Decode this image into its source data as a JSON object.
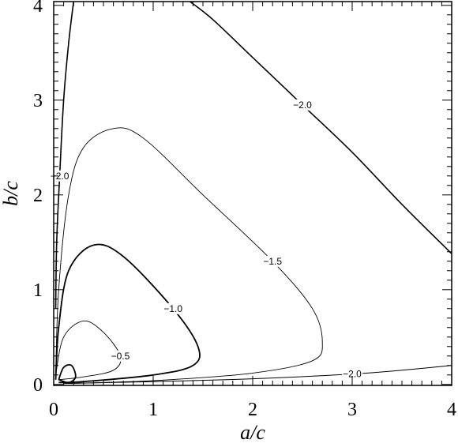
{
  "chart_data": {
    "type": "contour",
    "xlabel": "a/c",
    "ylabel": "b/c",
    "xlim": [
      0,
      4
    ],
    "ylim": [
      -0.01,
      4.04
    ],
    "xticks": [
      0,
      1,
      2,
      3,
      4
    ],
    "yticks": [
      0,
      1,
      2,
      3,
      4
    ],
    "series": [
      {
        "name": "−2.0",
        "width": 1.6,
        "x": [
          1.37,
          1.6,
          2.0,
          2.5,
          3.0,
          3.5,
          4.0
        ],
        "y": [
          4.04,
          3.85,
          3.45,
          2.95,
          2.45,
          1.9,
          1.38
        ]
      },
      {
        "name": "−2.0",
        "width": 1.6,
        "x": [
          0.2,
          0.15,
          0.1,
          0.06,
          0.03,
          0.02
        ],
        "y": [
          4.04,
          3.6,
          3.0,
          2.2,
          1.5,
          0.8
        ]
      },
      {
        "name": "−2.0",
        "width": 1.0,
        "x": [
          0.1,
          1.0,
          2.0,
          3.0,
          3.5,
          4.0
        ],
        "y": [
          0.01,
          0.03,
          0.06,
          0.11,
          0.15,
          0.2
        ]
      },
      {
        "name": "−1.5",
        "width": 0.9,
        "x": [
          0.02,
          0.05,
          0.15,
          0.3,
          0.6,
          0.9,
          1.5,
          2.2,
          2.6,
          2.7,
          2.6,
          2.0,
          1.0,
          0.1
        ],
        "y": [
          0.1,
          1.0,
          2.0,
          2.5,
          2.7,
          2.6,
          2.0,
          1.3,
          0.8,
          0.45,
          0.25,
          0.12,
          0.04,
          0.01
        ]
      },
      {
        "name": "−1.0",
        "width": 1.8,
        "x": [
          0.02,
          0.05,
          0.15,
          0.4,
          0.7,
          1.2,
          1.45,
          1.4,
          1.0,
          0.3,
          0.05
        ],
        "y": [
          0.05,
          0.6,
          1.2,
          1.47,
          1.35,
          0.8,
          0.4,
          0.2,
          0.1,
          0.03,
          0.02
        ]
      },
      {
        "name": "−0.5",
        "width": 0.9,
        "x": [
          0.02,
          0.1,
          0.3,
          0.5,
          0.67,
          0.6,
          0.3,
          0.05
        ],
        "y": [
          0.1,
          0.5,
          0.67,
          0.55,
          0.3,
          0.15,
          0.08,
          0.05
        ]
      },
      {
        "width": 1.8,
        "x": [
          0.05,
          0.1,
          0.18,
          0.22,
          0.15,
          0.05
        ],
        "y": [
          0.05,
          0.18,
          0.2,
          0.08,
          0.02,
          0.05
        ]
      }
    ]
  }
}
